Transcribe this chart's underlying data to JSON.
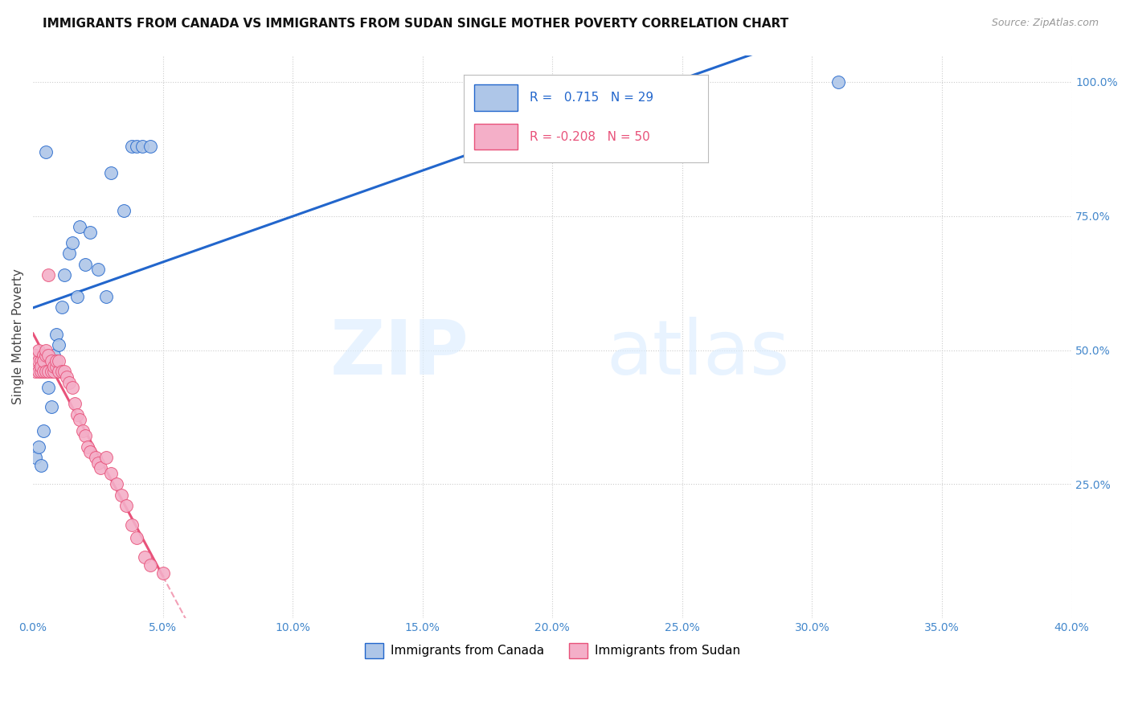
{
  "title": "IMMIGRANTS FROM CANADA VS IMMIGRANTS FROM SUDAN SINGLE MOTHER POVERTY CORRELATION CHART",
  "source": "Source: ZipAtlas.com",
  "ylabel": "Single Mother Poverty",
  "legend_canada": "Immigrants from Canada",
  "legend_sudan": "Immigrants from Sudan",
  "r_canada": 0.715,
  "n_canada": 29,
  "r_sudan": -0.208,
  "n_sudan": 50,
  "color_canada": "#aec6e8",
  "color_sudan": "#f4afc8",
  "trendline_canada": "#2266cc",
  "trendline_sudan": "#e8527a",
  "canada_x": [
    0.001,
    0.002,
    0.003,
    0.004,
    0.005,
    0.006,
    0.006,
    0.007,
    0.008,
    0.009,
    0.01,
    0.011,
    0.012,
    0.014,
    0.015,
    0.017,
    0.018,
    0.02,
    0.022,
    0.025,
    0.028,
    0.03,
    0.035,
    0.038,
    0.04,
    0.042,
    0.045,
    0.22,
    0.31
  ],
  "canada_y": [
    0.3,
    0.32,
    0.285,
    0.35,
    0.87,
    0.43,
    0.47,
    0.395,
    0.49,
    0.53,
    0.51,
    0.58,
    0.64,
    0.68,
    0.7,
    0.6,
    0.73,
    0.66,
    0.72,
    0.65,
    0.6,
    0.83,
    0.76,
    0.88,
    0.88,
    0.88,
    0.88,
    0.88,
    1.0
  ],
  "sudan_x": [
    0.001,
    0.001,
    0.002,
    0.002,
    0.002,
    0.003,
    0.003,
    0.003,
    0.004,
    0.004,
    0.004,
    0.005,
    0.005,
    0.005,
    0.006,
    0.006,
    0.006,
    0.007,
    0.007,
    0.008,
    0.008,
    0.009,
    0.009,
    0.01,
    0.01,
    0.011,
    0.012,
    0.013,
    0.014,
    0.015,
    0.016,
    0.017,
    0.018,
    0.019,
    0.02,
    0.021,
    0.022,
    0.024,
    0.025,
    0.026,
    0.028,
    0.03,
    0.032,
    0.034,
    0.036,
    0.038,
    0.04,
    0.043,
    0.045,
    0.05
  ],
  "sudan_y": [
    0.46,
    0.49,
    0.46,
    0.48,
    0.5,
    0.46,
    0.48,
    0.47,
    0.46,
    0.49,
    0.48,
    0.46,
    0.49,
    0.5,
    0.46,
    0.49,
    0.64,
    0.46,
    0.48,
    0.46,
    0.47,
    0.47,
    0.48,
    0.46,
    0.48,
    0.46,
    0.46,
    0.45,
    0.44,
    0.43,
    0.4,
    0.38,
    0.37,
    0.35,
    0.34,
    0.32,
    0.31,
    0.3,
    0.29,
    0.28,
    0.3,
    0.27,
    0.25,
    0.23,
    0.21,
    0.175,
    0.15,
    0.115,
    0.1,
    0.085
  ],
  "xlim": [
    0.0,
    0.4
  ],
  "ylim": [
    0.0,
    1.05
  ],
  "x_ticks": [
    0.0,
    0.05,
    0.1,
    0.15,
    0.2,
    0.25,
    0.3,
    0.35,
    0.4
  ],
  "y_ticks_right": [
    0.25,
    0.5,
    0.75,
    1.0
  ],
  "y_tick_labels": [
    "25.0%",
    "50.0%",
    "75.0%",
    "100.0%"
  ],
  "grid_color": "#cccccc",
  "tick_color": "#4488cc",
  "title_fontsize": 11,
  "source_fontsize": 9
}
